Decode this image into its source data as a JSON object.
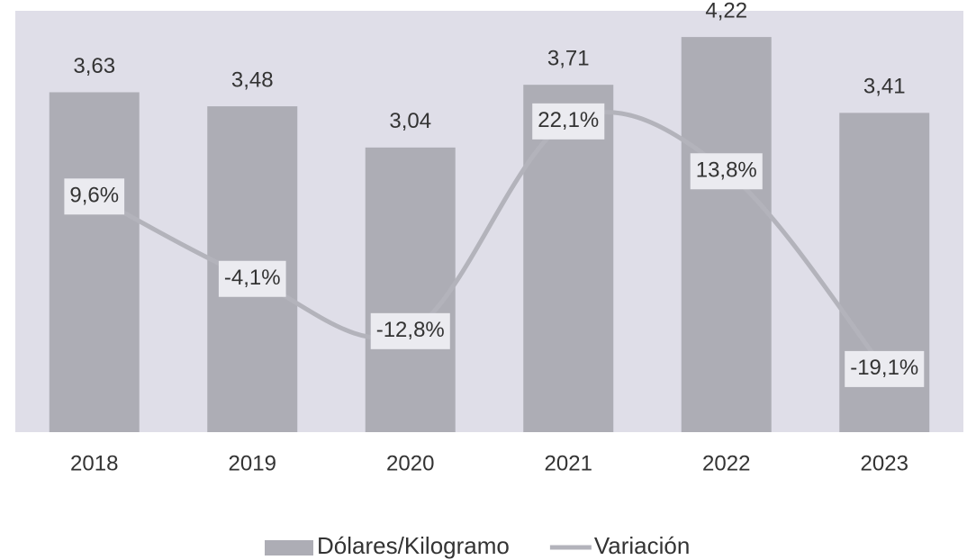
{
  "chart_data": {
    "type": "bar-line",
    "categories": [
      "2018",
      "2019",
      "2020",
      "2021",
      "2022",
      "2023"
    ],
    "series": [
      {
        "name": "Dólares/Kilogramo",
        "color": "#adadb5",
        "type": "bar",
        "values": [
          3.63,
          3.48,
          3.04,
          3.71,
          4.22,
          3.41
        ],
        "value_labels": [
          "3,63",
          "3,48",
          "3,04",
          "3,71",
          "4,22",
          "3,41"
        ]
      },
      {
        "name": "Variación",
        "color": "#b3b3bb",
        "type": "line",
        "axis": "y2",
        "values": [
          9.6,
          -4.1,
          -12.8,
          22.1,
          13.8,
          -19.1
        ],
        "value_labels": [
          "9,6%",
          "-4,1%",
          "-12,8%",
          "22,1%",
          "13,8%",
          "-19,1%"
        ]
      }
    ],
    "ylim": [
      0,
      4.5
    ],
    "y2lim": [
      -29.6,
      40.5
    ],
    "background": "#dfdee8",
    "legend": "bottom"
  }
}
